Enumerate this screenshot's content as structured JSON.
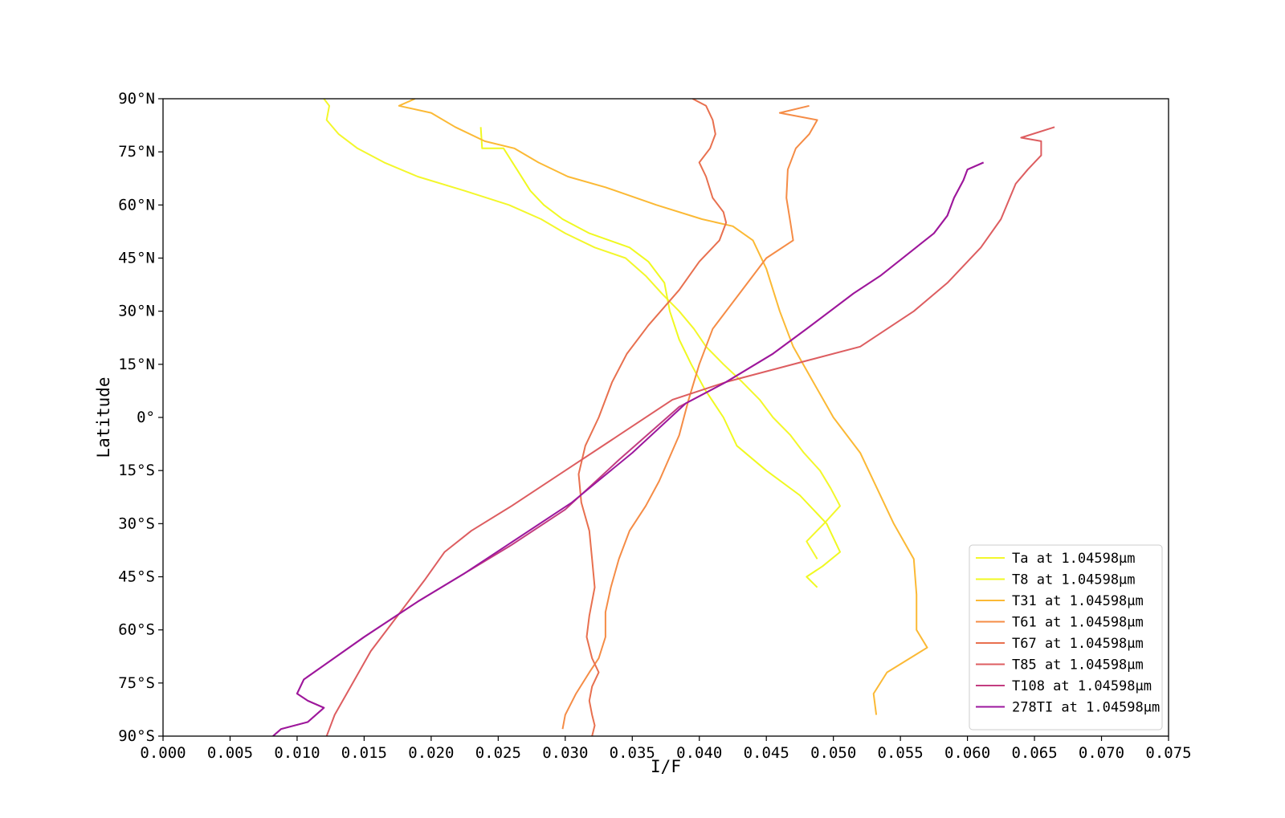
{
  "chart_data": {
    "type": "line",
    "xlabel": "I/F",
    "ylabel": "Latitude",
    "xlim": [
      0.0,
      0.075
    ],
    "ylim": [
      -90,
      90
    ],
    "x_ticks": [
      {
        "value": 0.0,
        "label": "0.000"
      },
      {
        "value": 0.005,
        "label": "0.005"
      },
      {
        "value": 0.01,
        "label": "0.010"
      },
      {
        "value": 0.015,
        "label": "0.015"
      },
      {
        "value": 0.02,
        "label": "0.020"
      },
      {
        "value": 0.025,
        "label": "0.025"
      },
      {
        "value": 0.03,
        "label": "0.030"
      },
      {
        "value": 0.035,
        "label": "0.035"
      },
      {
        "value": 0.04,
        "label": "0.040"
      },
      {
        "value": 0.045,
        "label": "0.045"
      },
      {
        "value": 0.05,
        "label": "0.050"
      },
      {
        "value": 0.055,
        "label": "0.055"
      },
      {
        "value": 0.06,
        "label": "0.060"
      },
      {
        "value": 0.065,
        "label": "0.065"
      },
      {
        "value": 0.07,
        "label": "0.070"
      },
      {
        "value": 0.075,
        "label": "0.075"
      }
    ],
    "y_ticks": [
      {
        "value": 90,
        "label": "90°N"
      },
      {
        "value": 75,
        "label": "75°N"
      },
      {
        "value": 60,
        "label": "60°N"
      },
      {
        "value": 45,
        "label": "45°N"
      },
      {
        "value": 30,
        "label": "30°N"
      },
      {
        "value": 15,
        "label": "15°N"
      },
      {
        "value": 0,
        "label": "0°"
      },
      {
        "value": -15,
        "label": "15°S"
      },
      {
        "value": -30,
        "label": "30°S"
      },
      {
        "value": -45,
        "label": "45°S"
      },
      {
        "value": -60,
        "label": "60°S"
      },
      {
        "value": -75,
        "label": "75°S"
      },
      {
        "value": -90,
        "label": "90°S"
      }
    ],
    "grid": false,
    "legend_position": "lower-right",
    "series": [
      {
        "name": "Ta at 1.04598µm",
        "color": "#f3f72b",
        "x": [
          0.012,
          0.0124,
          0.0122,
          0.0131,
          0.0145,
          0.0165,
          0.019,
          0.0225,
          0.0258,
          0.0282,
          0.03,
          0.0322,
          0.0345,
          0.036,
          0.0372,
          0.0385,
          0.0396,
          0.0405,
          0.0418,
          0.0432,
          0.0445,
          0.0455,
          0.0468,
          0.0478,
          0.049,
          0.0498,
          0.0505,
          0.0493,
          0.048,
          0.0488
        ],
        "y": [
          90,
          88,
          84,
          80,
          76,
          72,
          68,
          64,
          60,
          56,
          52,
          48,
          45,
          40,
          35,
          30,
          25,
          20,
          15,
          10,
          5,
          0,
          -5,
          -10,
          -15,
          -20,
          -25,
          -30,
          -35,
          -40
        ]
      },
      {
        "name": "T8 at 1.04598µm",
        "color": "#f0f921",
        "x": [
          0.0237,
          0.0238,
          0.0254,
          0.0264,
          0.0274,
          0.0284,
          0.0298,
          0.0318,
          0.0348,
          0.0362,
          0.0374,
          0.0378,
          0.0385,
          0.0394,
          0.0404,
          0.0418,
          0.0428,
          0.045,
          0.0475,
          0.0495,
          0.0505,
          0.0492,
          0.048,
          0.0488
        ],
        "y": [
          82,
          76,
          76,
          70,
          64,
          60,
          56,
          52,
          48,
          44,
          38,
          30,
          22,
          15,
          8,
          0,
          -8,
          -15,
          -22,
          -30,
          -38,
          -42,
          -45,
          -48
        ]
      },
      {
        "name": "T31 at 1.04598µm",
        "color": "#fbb935",
        "x": [
          0.0188,
          0.0176,
          0.02,
          0.0218,
          0.024,
          0.0262,
          0.028,
          0.0302,
          0.033,
          0.0368,
          0.0402,
          0.0425,
          0.044,
          0.045,
          0.046,
          0.047,
          0.0485,
          0.05,
          0.052,
          0.0545,
          0.056,
          0.0562,
          0.0562,
          0.0562,
          0.057,
          0.054,
          0.053,
          0.0532
        ],
        "y": [
          90,
          88,
          86,
          82,
          78,
          76,
          72,
          68,
          65,
          60,
          56,
          54,
          50,
          42,
          30,
          20,
          10,
          0,
          -10,
          -30,
          -40,
          -50,
          -55,
          -60,
          -65,
          -72,
          -78,
          -84
        ]
      },
      {
        "name": "T61 at 1.04598µm",
        "color": "#f58c46",
        "x": [
          0.0482,
          0.046,
          0.0488,
          0.0482,
          0.0472,
          0.0466,
          0.0465,
          0.0468,
          0.047,
          0.045,
          0.043,
          0.041,
          0.04,
          0.0392,
          0.0385,
          0.0377,
          0.037,
          0.036,
          0.0348,
          0.034,
          0.0334,
          0.033,
          0.033,
          0.0325,
          0.0318,
          0.0308,
          0.03,
          0.0298
        ],
        "y": [
          88,
          86,
          84,
          80,
          76,
          70,
          62,
          55,
          50,
          45,
          35,
          25,
          15,
          5,
          -5,
          -12,
          -18,
          -25,
          -32,
          -40,
          -48,
          -55,
          -62,
          -68,
          -72,
          -78,
          -84,
          -88
        ]
      },
      {
        "name": "T67 at 1.04598µm",
        "color": "#e8704f",
        "x": [
          0.0395,
          0.0405,
          0.041,
          0.0412,
          0.0408,
          0.04,
          0.0405,
          0.041,
          0.0418,
          0.042,
          0.0415,
          0.04,
          0.0385,
          0.0362,
          0.0346,
          0.0335,
          0.0325,
          0.0315,
          0.031,
          0.0312,
          0.0318,
          0.032,
          0.0322,
          0.0318,
          0.0316,
          0.032,
          0.0325,
          0.032,
          0.0318,
          0.032,
          0.0322,
          0.032
        ],
        "y": [
          90,
          88,
          84,
          80,
          76,
          72,
          68,
          62,
          58,
          55,
          50,
          44,
          36,
          26,
          18,
          10,
          0,
          -8,
          -16,
          -24,
          -32,
          -40,
          -48,
          -56,
          -62,
          -68,
          -72,
          -76,
          -80,
          -84,
          -87,
          -90
        ]
      },
      {
        "name": "T85 at 1.04598µm",
        "color": "#dd5d60",
        "x": [
          0.0665,
          0.064,
          0.0655,
          0.0655,
          0.0645,
          0.0636,
          0.0625,
          0.061,
          0.0585,
          0.056,
          0.052,
          0.048,
          0.042,
          0.038,
          0.034,
          0.03,
          0.026,
          0.023,
          0.021,
          0.0195,
          0.0175,
          0.0155,
          0.014,
          0.0128,
          0.0125,
          0.0122
        ],
        "y": [
          82,
          79,
          78,
          74,
          70,
          66,
          56,
          48,
          38,
          30,
          20,
          16,
          10,
          5,
          -5,
          -15,
          -25,
          -32,
          -38,
          -46,
          -56,
          -66,
          -76,
          -84,
          -87,
          -90
        ]
      },
      {
        "name": "T108 at 1.04598µm",
        "color": "#c33d80",
        "x": [
          0.0612,
          0.06,
          0.0597,
          0.059,
          0.0585,
          0.0575,
          0.0555,
          0.0535,
          0.0515,
          0.048,
          0.0455,
          0.042,
          0.0385,
          0.034,
          0.03,
          0.026,
          0.0225,
          0.019,
          0.015,
          0.012,
          0.0105,
          0.01,
          0.0108,
          0.012,
          0.0108,
          0.0088,
          0.0082
        ],
        "y": [
          72,
          70,
          67,
          62,
          57,
          52,
          46,
          40,
          35,
          25,
          18,
          10,
          3,
          -12,
          -26,
          -36,
          -44,
          -52,
          -62,
          -70,
          -74,
          -78,
          -80,
          -82,
          -86,
          -88,
          -90
        ]
      },
      {
        "name": "278TI at 1.04598µm",
        "color": "#9c179e",
        "x": [
          0.0612,
          0.06,
          0.0597,
          0.059,
          0.0585,
          0.0575,
          0.0555,
          0.0535,
          0.0515,
          0.048,
          0.0455,
          0.042,
          0.039,
          0.035,
          0.0305,
          0.0265,
          0.0225,
          0.019,
          0.015,
          0.012,
          0.0105,
          0.01,
          0.0108,
          0.012,
          0.0108,
          0.0088,
          0.0082
        ],
        "y": [
          72,
          70,
          67,
          62,
          57,
          52,
          46,
          40,
          35,
          25,
          18,
          10,
          4,
          -10,
          -24,
          -34,
          -44,
          -52,
          -62,
          -70,
          -74,
          -78,
          -80,
          -82,
          -86,
          -88,
          -90
        ]
      }
    ]
  }
}
